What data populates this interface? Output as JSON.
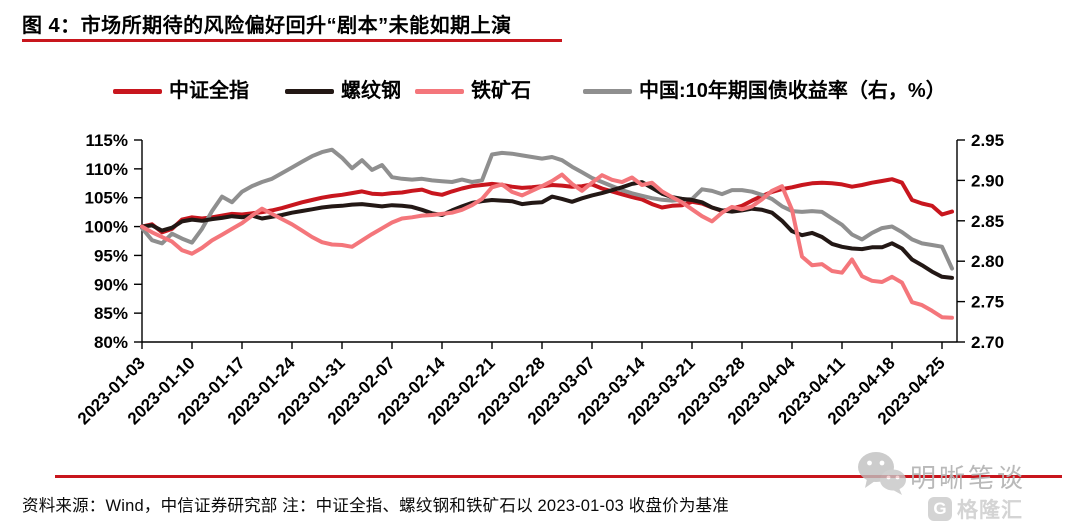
{
  "title": "图 4：市场所期待的风险偏好回升“剧本”未能如期上演",
  "footer": {
    "source_note": "资料来源：Wind，中信证券研究部 注：中证全指、螺纹钢和铁矿石以 2023-01-03 收盘价为基准"
  },
  "watermarks": {
    "wechat_name": "明晰笔谈",
    "glh_logo_letter": "G",
    "glh_logo_text": "格隆汇"
  },
  "chart_data": {
    "type": "line",
    "title": "",
    "grid": false,
    "legend_position": "top",
    "x_tick_labels": [
      "2023-01-03",
      "2023-01-10",
      "2023-01-17",
      "2023-01-24",
      "2023-01-31",
      "2023-02-07",
      "2023-02-14",
      "2023-02-21",
      "2023-02-28",
      "2023-03-07",
      "2023-03-14",
      "2023-03-21",
      "2023-03-28",
      "2023-04-04",
      "2023-04-11",
      "2023-04-18",
      "2023-04-25"
    ],
    "points_per_tick_interval": 5,
    "left_axis": {
      "unit": "%",
      "min": 80,
      "max": 115,
      "tick_step": 5,
      "tick_labels": [
        "115%",
        "110%",
        "105%",
        "100%",
        "95%",
        "90%",
        "85%",
        "80%"
      ]
    },
    "right_axis": {
      "unit": "yield",
      "min": 2.7,
      "max": 2.95,
      "tick_step": 0.05,
      "tick_labels": [
        "2.95",
        "2.90",
        "2.85",
        "2.80",
        "2.75",
        "2.70"
      ]
    },
    "series": [
      {
        "name": "中证全指",
        "axis": "left",
        "color": "#c8161e",
        "values": [
          100.0,
          100.4,
          99.0,
          99.6,
          101.2,
          101.6,
          101.4,
          101.6,
          101.9,
          102.2,
          102.1,
          102.3,
          102.5,
          102.8,
          103.2,
          103.7,
          104.2,
          104.6,
          105.0,
          105.3,
          105.5,
          105.8,
          106.1,
          105.7,
          105.6,
          105.8,
          105.9,
          106.2,
          106.4,
          105.8,
          105.5,
          106.1,
          106.6,
          107.0,
          107.2,
          107.4,
          107.2,
          106.9,
          106.7,
          106.8,
          107.0,
          107.2,
          107.1,
          106.9,
          107.0,
          107.3,
          106.6,
          106.1,
          105.6,
          105.1,
          104.7,
          103.9,
          103.3,
          103.6,
          103.7,
          104.3,
          104.0,
          103.3,
          102.7,
          103.1,
          103.6,
          104.5,
          105.3,
          106.0,
          106.5,
          106.8,
          107.2,
          107.5,
          107.6,
          107.5,
          107.3,
          106.9,
          107.2,
          107.6,
          107.9,
          108.2,
          107.6,
          104.6,
          104.0,
          103.6,
          102.1,
          102.6
        ]
      },
      {
        "name": "螺纹钢",
        "axis": "left",
        "color": "#231815",
        "values": [
          100.0,
          100.2,
          99.3,
          99.8,
          100.9,
          101.2,
          101.0,
          101.3,
          101.5,
          101.8,
          101.6,
          101.9,
          101.4,
          101.7,
          102.0,
          102.4,
          102.7,
          103.0,
          103.3,
          103.5,
          103.6,
          103.8,
          103.9,
          103.7,
          103.5,
          103.7,
          103.6,
          103.4,
          102.9,
          102.3,
          102.0,
          102.8,
          103.5,
          104.1,
          104.4,
          104.6,
          104.5,
          104.4,
          103.9,
          104.1,
          104.2,
          105.2,
          104.8,
          104.3,
          104.9,
          105.4,
          105.8,
          106.3,
          106.8,
          107.4,
          107.7,
          106.7,
          105.7,
          105.1,
          104.8,
          104.6,
          104.2,
          103.3,
          102.8,
          102.6,
          102.8,
          103.1,
          102.9,
          102.4,
          101.0,
          99.2,
          98.5,
          98.9,
          98.2,
          97.0,
          96.5,
          96.2,
          96.1,
          96.4,
          96.4,
          97.1,
          96.2,
          94.3,
          93.3,
          92.2,
          91.3,
          91.1
        ]
      },
      {
        "name": "铁矿石",
        "axis": "left",
        "color": "#f4767b",
        "values": [
          100.0,
          99.0,
          98.2,
          97.4,
          95.9,
          95.3,
          96.3,
          97.6,
          98.6,
          99.6,
          100.6,
          101.9,
          103.1,
          102.2,
          101.3,
          100.4,
          99.3,
          98.2,
          97.3,
          96.9,
          96.8,
          96.5,
          97.6,
          98.7,
          99.7,
          100.7,
          101.4,
          101.6,
          101.9,
          102.0,
          102.2,
          102.4,
          102.9,
          103.7,
          104.8,
          106.8,
          107.3,
          106.0,
          105.4,
          106.2,
          107.0,
          107.9,
          109.0,
          107.4,
          106.2,
          107.6,
          108.9,
          108.1,
          107.7,
          108.5,
          107.2,
          107.6,
          106.1,
          105.1,
          104.2,
          103.0,
          101.8,
          100.9,
          102.4,
          103.4,
          103.0,
          103.5,
          104.7,
          106.2,
          107.0,
          102.9,
          94.8,
          93.3,
          93.5,
          92.3,
          92.0,
          94.3,
          91.4,
          90.6,
          90.4,
          91.3,
          90.3,
          86.9,
          86.4,
          85.4,
          84.3,
          84.2
        ]
      },
      {
        "name": "中国:10年期国债收益率（右，%）",
        "axis": "right",
        "color": "#8f8f8f",
        "values": [
          2.841,
          2.826,
          2.822,
          2.834,
          2.828,
          2.823,
          2.84,
          2.862,
          2.88,
          2.873,
          2.886,
          2.893,
          2.898,
          2.902,
          2.909,
          2.916,
          2.923,
          2.93,
          2.935,
          2.938,
          2.928,
          2.915,
          2.925,
          2.913,
          2.919,
          2.904,
          2.902,
          2.901,
          2.902,
          2.9,
          2.899,
          2.898,
          2.901,
          2.898,
          2.9,
          2.932,
          2.934,
          2.933,
          2.931,
          2.929,
          2.927,
          2.929,
          2.925,
          2.917,
          2.91,
          2.903,
          2.898,
          2.893,
          2.888,
          2.884,
          2.881,
          2.878,
          2.876,
          2.875,
          2.876,
          2.877,
          2.889,
          2.887,
          2.883,
          2.888,
          2.888,
          2.886,
          2.882,
          2.877,
          2.868,
          2.862,
          2.861,
          2.862,
          2.861,
          2.853,
          2.845,
          2.833,
          2.827,
          2.835,
          2.841,
          2.843,
          2.836,
          2.827,
          2.822,
          2.82,
          2.818,
          2.791
        ]
      }
    ]
  }
}
